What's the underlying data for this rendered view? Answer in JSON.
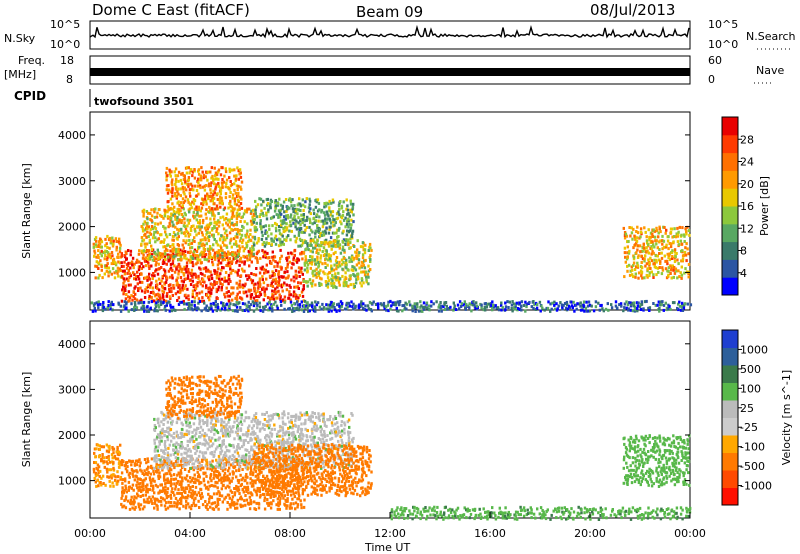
{
  "header": {
    "station": "Dome C East (fitACF)",
    "beam": "Beam 09",
    "date": "08/Jul/2013"
  },
  "top_panels": {
    "nsky_label": "N.Sky",
    "nsky_tick_high": "10^5",
    "nsky_tick_low": "10^0",
    "nsearch_label": "N.Search",
    "nsearch_tick_high": "10^5",
    "nsearch_tick_low": "10^0",
    "freq_label": "Freq.",
    "freq_unit": "[MHz]",
    "freq_tick_high": "18",
    "freq_tick_low": "8",
    "nave_label": "Nave",
    "nave_tick_high": "60",
    "nave_tick_low": "0",
    "cpid_label": "CPID",
    "cpid_value": "twofsound 3501"
  },
  "colors": {
    "power_scale": [
      "#0000ff",
      "#2b55a3",
      "#3a7a6a",
      "#58a862",
      "#8cc83c",
      "#e8c800",
      "#ff9a00",
      "#ff7000",
      "#ff3a00",
      "#e80000"
    ],
    "velocity_scale": [
      "#ff1000",
      "#ff4a00",
      "#ff7a00",
      "#ffa800",
      "#cccccc",
      "#bbbbbb",
      "#58b84a",
      "#3a7a4a",
      "#2d5f9a",
      "#1f3fd0"
    ]
  },
  "chart_data": [
    {
      "type": "heatmap",
      "title": "",
      "quantity": "Power",
      "ylabel": "Slant Range [km]",
      "ylim": [
        180,
        4500
      ],
      "yticks": [
        "1000",
        "2000",
        "3000",
        "4000"
      ],
      "xlim": [
        0,
        24
      ],
      "colorbar": {
        "label": "Power [dB]",
        "range": [
          0,
          32
        ],
        "ticks": [
          "4",
          "8",
          "12",
          "16",
          "20",
          "24",
          "28"
        ]
      },
      "regions": [
        {
          "t0": 0.1,
          "t1": 1.2,
          "r0": 900,
          "r1": 1800,
          "value": 20
        },
        {
          "t0": 1.2,
          "t1": 8.5,
          "r0": 400,
          "r1": 1500,
          "value": 27
        },
        {
          "t0": 2.0,
          "t1": 6.5,
          "r0": 1300,
          "r1": 2400,
          "value": 18
        },
        {
          "t0": 3.0,
          "t1": 6.0,
          "r0": 2400,
          "r1": 3300,
          "value": 22
        },
        {
          "t0": 6.5,
          "t1": 10.5,
          "r0": 1600,
          "r1": 2600,
          "value": 12
        },
        {
          "t0": 8.5,
          "t1": 11.2,
          "r0": 700,
          "r1": 1700,
          "value": 16
        },
        {
          "t0": 21.3,
          "t1": 23.9,
          "r0": 900,
          "r1": 2000,
          "value": 20
        },
        {
          "t0": 0.0,
          "t1": 24.0,
          "r0": 180,
          "r1": 400,
          "value": 6
        }
      ]
    },
    {
      "type": "heatmap",
      "title": "",
      "quantity": "Velocity",
      "ylabel": "Slant Range [km]",
      "ylim": [
        180,
        4500
      ],
      "yticks": [
        "1000",
        "2000",
        "3000",
        "4000"
      ],
      "xlabel": "Time UT",
      "xticks": [
        "00:00",
        "04:00",
        "08:00",
        "12:00",
        "16:00",
        "20:00",
        "00:00"
      ],
      "xlim": [
        0,
        24
      ],
      "colorbar": {
        "label": "Velocity [m s^-1]",
        "ticks": [
          "1000",
          "500",
          "100",
          "25",
          "-25",
          "-100",
          "-500",
          "-1000"
        ]
      },
      "regions": [
        {
          "t0": 0.1,
          "t1": 1.2,
          "r0": 900,
          "r1": 1800,
          "value": -100
        },
        {
          "t0": 1.2,
          "t1": 8.5,
          "r0": 400,
          "r1": 1500,
          "value": -300
        },
        {
          "t0": 2.5,
          "t1": 10.5,
          "r0": 1300,
          "r1": 2500,
          "value": 0
        },
        {
          "t0": 3.0,
          "t1": 6.0,
          "r0": 2400,
          "r1": 3300,
          "value": -150
        },
        {
          "t0": 6.5,
          "t1": 11.2,
          "r0": 700,
          "r1": 1800,
          "value": -300
        },
        {
          "t0": 21.3,
          "t1": 23.9,
          "r0": 900,
          "r1": 2000,
          "value": 60
        },
        {
          "t0": 12.0,
          "t1": 24.0,
          "r0": 180,
          "r1": 450,
          "value": 80
        }
      ]
    }
  ]
}
